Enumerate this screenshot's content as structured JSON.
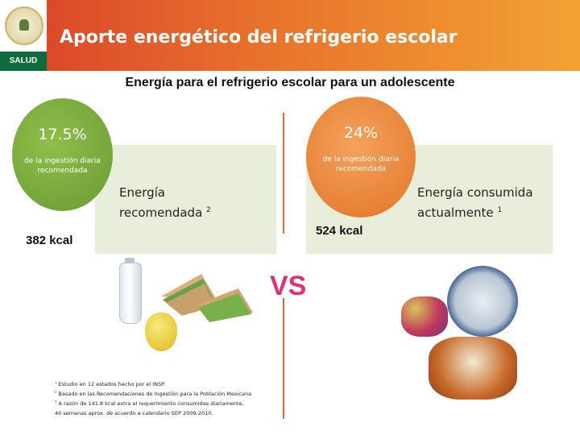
{
  "header": {
    "title": "Aporte energético del refrigerio escolar",
    "logo_text": "SALUD",
    "seal_text": "Estados Unidos Mexicanos",
    "colors": {
      "gradient_start": "#d9402a",
      "gradient_end": "#f2a233",
      "salud_bg": "#0d6b3d"
    }
  },
  "subtitle": "Energía para el refrigerio escolar para un adolescente",
  "left": {
    "percent": "17.5%",
    "note": "de la ingestión diaria recomendada",
    "label_line1": "Energía",
    "label_line2": "recomendada",
    "label_sup": "2",
    "kcal": "382 kcal",
    "food_icons": [
      "water-bottle-icon",
      "sandwich-icon",
      "pear-icon"
    ]
  },
  "right": {
    "percent": "24%",
    "note": "de la ingestión diaria recomendada",
    "label_line1": "Energía consumida",
    "label_line2": "actualmente",
    "label_sup": "1",
    "kcal": "524 kcal",
    "food_icons": [
      "soda-can-icon",
      "fruit-snack-icon",
      "chips-plate-icon"
    ]
  },
  "vs": "VS",
  "footnotes": [
    {
      "sup": "1",
      "text": " Estudio en 12 estados hecho por el INSP."
    },
    {
      "sup": "2",
      "text": " Basado en las Recomendaciones de Ingestión para la Población Mexicana"
    },
    {
      "sup": "3",
      "text": " A razón de 141.8 kcal extra al requerimiento consumidas diariamente,"
    },
    {
      "sup": "",
      "text": "40 semanas aprox. de acuerdo a calendario SEP 2009-2010."
    }
  ],
  "colors": {
    "green": "#6a9a34",
    "orange": "#e27428",
    "panel": "#e9eedb",
    "vs": "#e0307a",
    "divider": "#e56b2c"
  }
}
